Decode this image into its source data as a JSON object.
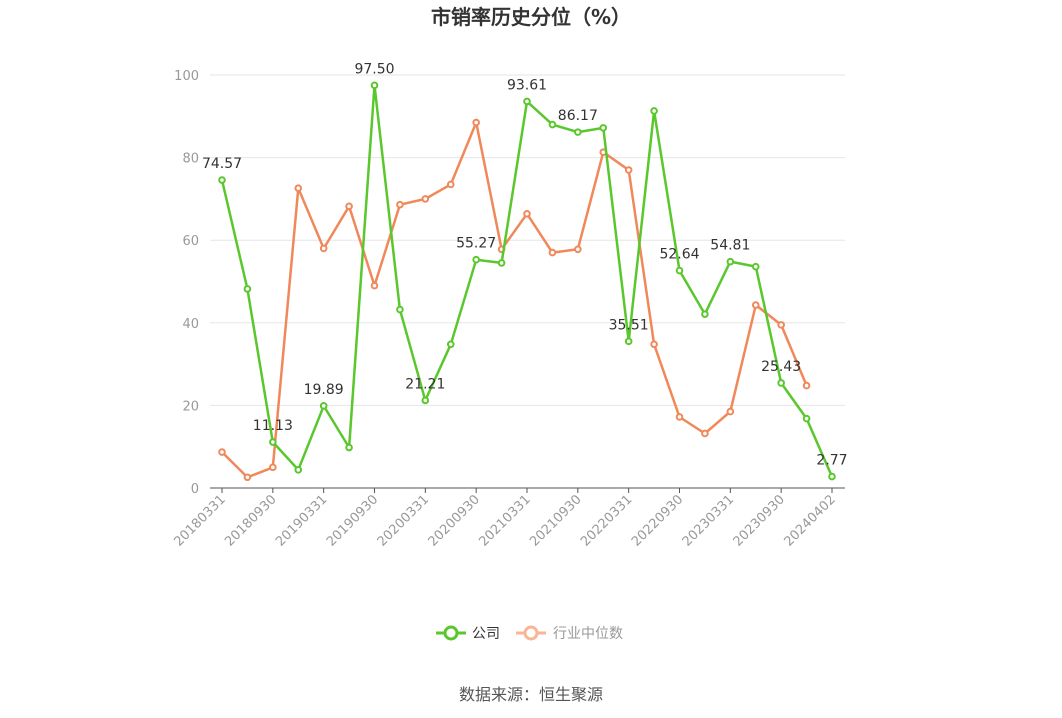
{
  "chart_data": {
    "type": "line",
    "title": "市销率历史分位（%）",
    "ylim": [
      0,
      100
    ],
    "yticks": [
      "0",
      "20",
      "40",
      "60",
      "80",
      "100"
    ],
    "x": [
      "20180331",
      "20180630",
      "20180930",
      "20181231",
      "20190331",
      "20190630",
      "20190930",
      "20191231",
      "20200331",
      "20200630",
      "20200930",
      "20201231",
      "20210331",
      "20210630",
      "20210930",
      "20211231",
      "20220331",
      "20220630",
      "20220930",
      "20221231",
      "20230331",
      "20230630",
      "20230930",
      "20231231",
      "20240402"
    ],
    "xticks": [
      "20180331",
      "20180930",
      "20190331",
      "20190930",
      "20200331",
      "20200930",
      "20210331",
      "20210930",
      "20220331",
      "20220930",
      "20230331",
      "20230930",
      "20240402"
    ],
    "series": [
      {
        "name": "公司",
        "color": "#5ac72d",
        "values": [
          74.57,
          48.2,
          11.13,
          4.4,
          19.89,
          9.8,
          97.5,
          43.2,
          21.21,
          34.8,
          55.27,
          54.5,
          93.61,
          88.0,
          86.17,
          87.2,
          35.51,
          91.3,
          52.64,
          42.1,
          54.81,
          53.6,
          25.43,
          16.8,
          2.77
        ],
        "labels": {
          "0": "74.57",
          "2": "11.13",
          "4": "19.89",
          "6": "97.50",
          "8": "21.21",
          "10": "55.27",
          "12": "93.61",
          "14": "86.17",
          "16": "35.51",
          "18": "52.64",
          "20": "54.81",
          "22": "25.43",
          "24": "2.77"
        }
      },
      {
        "name": "行业中位数",
        "color": "#f0885a",
        "values": [
          8.7,
          2.6,
          5.0,
          72.6,
          58.0,
          68.2,
          49.0,
          68.6,
          70.0,
          73.5,
          88.5,
          57.8,
          66.4,
          57.0,
          57.8,
          81.3,
          77.0,
          34.8,
          17.2,
          13.2,
          18.5,
          44.3,
          39.5,
          24.8,
          null
        ]
      }
    ]
  },
  "legend": {
    "company": "公司",
    "industry": "行业中位数"
  },
  "source": "数据来源：恒生聚源"
}
